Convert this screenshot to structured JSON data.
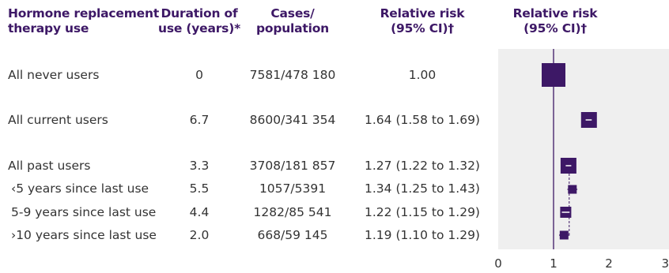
{
  "headers": {
    "hrt_use": "Hormone replacement\ntherapy use",
    "duration": "Duration of\nuse (years)*",
    "cases": "Cases/\npopulation",
    "rr": "Relative risk\n(95% CI)†",
    "rr_plot": "Relative risk\n(95% CI)†"
  },
  "rows": [
    {
      "label": "All never users",
      "duration": "0",
      "cases": "7581/478 180",
      "rr_text": "1.00"
    },
    {
      "label": "All current users",
      "duration": "6.7",
      "cases": "8600/341 354",
      "rr_text": "1.64 (1.58 to 1.69)"
    },
    {
      "label": "All past users",
      "duration": "3.3",
      "cases": "3708/181 857",
      "rr_text": "1.27 (1.22 to 1.32)"
    },
    {
      "label": "‹5 years since last use",
      "duration": "5.5",
      "cases": "1057/5391",
      "rr_text": "1.34 (1.25 to 1.43)"
    },
    {
      "label": "5-9 years since last use",
      "duration": "4.4",
      "cases": "1282/85 541",
      "rr_text": "1.22 (1.15 to 1.29)"
    },
    {
      "label": "›10 years since last use",
      "duration": "2.0",
      "cases": "668/59 145",
      "rr_text": "1.19 (1.10 to 1.29)"
    }
  ],
  "chart_data": {
    "type": "forest",
    "xlabel": "",
    "xlim": [
      0,
      3
    ],
    "xticks": [
      "0",
      "1",
      "2",
      "3"
    ],
    "reference_line": 1,
    "point_color": "#3d1866",
    "panel_color": "#efefef",
    "points": [
      {
        "label": "All never users",
        "rr": 1.0,
        "lo": 1.0,
        "hi": 1.0
      },
      {
        "label": "All current users",
        "rr": 1.64,
        "lo": 1.58,
        "hi": 1.69
      },
      {
        "label": "All past users",
        "rr": 1.27,
        "lo": 1.22,
        "hi": 1.32
      },
      {
        "label": "‹5 years since last use",
        "rr": 1.34,
        "lo": 1.25,
        "hi": 1.43
      },
      {
        "label": "5-9 years since last use",
        "rr": 1.22,
        "lo": 1.15,
        "hi": 1.29
      },
      {
        "label": "›10 years since last use",
        "rr": 1.19,
        "lo": 1.1,
        "hi": 1.29
      }
    ]
  }
}
